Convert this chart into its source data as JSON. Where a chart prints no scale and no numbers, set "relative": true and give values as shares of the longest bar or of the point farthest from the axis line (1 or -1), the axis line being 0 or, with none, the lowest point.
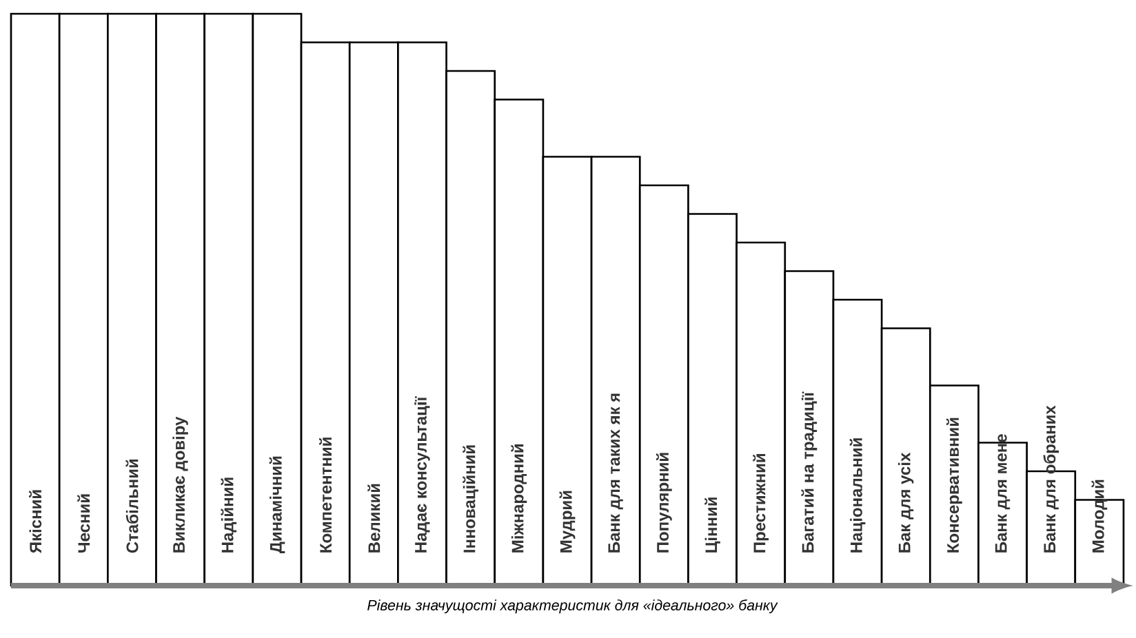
{
  "chart_data": {
    "type": "bar",
    "relative": true,
    "color": "#ffffff",
    "xlabel": "Рівень значущості характеристик для «ідеального» банку",
    "categories": [
      "Якісний",
      "Чесний",
      "Стабільний",
      "Викликає довіру",
      "Надійний",
      "Динамічний",
      "Компетентний",
      "Великий",
      "Надає консультації",
      "Інноваційний",
      "Міжнародний",
      "Мудрий",
      "Банк для таких як я",
      "Популярний",
      "Цінний",
      "Престижний",
      "Багатий на традиції",
      "Національний",
      "Бак для усіх",
      "Консервативний",
      "Банк для мене",
      "Банк для обраних",
      "Молодий"
    ],
    "values": [
      1,
      1,
      1,
      1,
      1,
      1,
      0.95,
      0.95,
      0.95,
      0.9,
      0.85,
      0.75,
      0.75,
      0.7,
      0.65,
      0.6,
      0.55,
      0.5,
      0.45,
      0.35,
      0.25,
      0.2,
      0.15
    ]
  }
}
